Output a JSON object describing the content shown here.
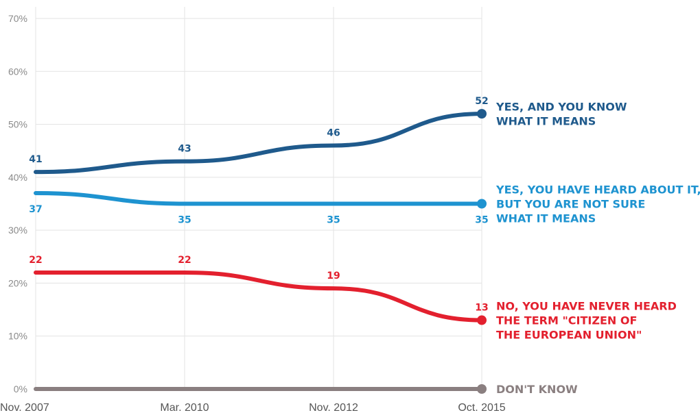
{
  "chart_data": {
    "type": "line",
    "categories": [
      "Nov. 2007",
      "Mar. 2010",
      "Nov. 2012",
      "Oct. 2015"
    ],
    "ylim": [
      0,
      70
    ],
    "yticks": [
      "0%",
      "10%",
      "20%",
      "30%",
      "40%",
      "50%",
      "60%",
      "70%"
    ],
    "grid": true,
    "legend": "right-end labels",
    "series": [
      {
        "name": "YES, AND YOU KNOW WHAT IT MEANS",
        "label_lines": [
          "YES, AND YOU KNOW",
          "WHAT IT MEANS"
        ],
        "values": [
          41,
          43,
          46,
          52
        ],
        "data_labels": [
          "41",
          "43",
          "46",
          "52"
        ],
        "label_side": "above",
        "color": "#1f5a8c"
      },
      {
        "name": "YES, YOU HAVE HEARD ABOUT IT, BUT YOU ARE NOT SURE WHAT IT MEANS",
        "label_lines": [
          "YES, YOU HAVE HEARD ABOUT IT,",
          "BUT YOU ARE NOT SURE",
          "WHAT IT MEANS"
        ],
        "values": [
          37,
          35,
          35,
          35
        ],
        "data_labels": [
          "37",
          "35",
          "35",
          "35"
        ],
        "label_side": "below",
        "color": "#1e93d0"
      },
      {
        "name": "NO, YOU HAVE NEVER HEARD THE TERM \"CITIZEN OF THE EUROPEAN UNION\"",
        "label_lines": [
          "NO, YOU HAVE NEVER HEARD",
          "THE TERM \"CITIZEN OF",
          "THE EUROPEAN UNION\""
        ],
        "values": [
          22,
          22,
          19,
          13
        ],
        "data_labels": [
          "22",
          "22",
          "19",
          "13"
        ],
        "label_side": "above",
        "color": "#e3202e"
      },
      {
        "name": "DON'T KNOW",
        "label_lines": [
          "DON'T KNOW"
        ],
        "values": [
          0,
          0,
          0,
          0
        ],
        "data_labels": [],
        "label_side": "none",
        "color": "#8a7f80"
      }
    ]
  }
}
